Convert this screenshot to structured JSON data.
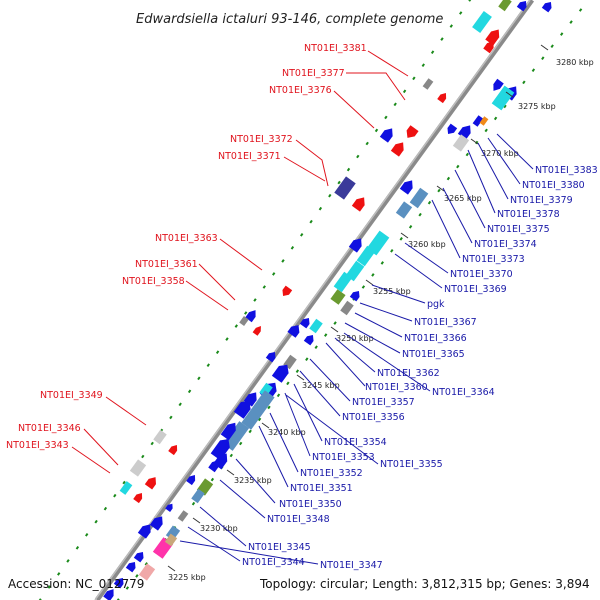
{
  "title": "Edwardsiella ictaluri 93-146, complete genome",
  "footer": {
    "accession": "Accession: NC_012779",
    "summary": "Topology: circular; Length: 3,812,315 bp; Genes: 3,894"
  },
  "ticks": [
    "3225 kbp",
    "3230 kbp",
    "3235 kbp",
    "3240 kbp",
    "3245 kbp",
    "3250 kbp",
    "3255 kbp",
    "3260 kbp",
    "3265 kbp",
    "3270 kbp",
    "3275 kbp",
    "3280 kbp"
  ],
  "labels_left": [
    "NT01EI_3381",
    "NT01EI_3377",
    "NT01EI_3376",
    "NT01EI_3372",
    "NT01EI_3371",
    "NT01EI_3363",
    "NT01EI_3361",
    "NT01EI_3358",
    "NT01EI_3349",
    "NT01EI_3346",
    "NT01EI_3343"
  ],
  "labels_right": [
    "NT01EI_3383",
    "NT01EI_3380",
    "NT01EI_3379",
    "NT01EI_3378",
    "NT01EI_3375",
    "NT01EI_3374",
    "NT01EI_3373",
    "NT01EI_3370",
    "NT01EI_3369",
    "pgk",
    "NT01EI_3367",
    "NT01EI_3366",
    "NT01EI_3365",
    "NT01EI_3362",
    "NT01EI_3360",
    "NT01EI_3364",
    "NT01EI_3357",
    "NT01EI_3356",
    "NT01EI_3354",
    "NT01EI_3353",
    "NT01EI_3355",
    "NT01EI_3352",
    "NT01EI_3351",
    "NT01EI_3350",
    "NT01EI_3348",
    "NT01EI_3345",
    "NT01EI_3344",
    "NT01EI_3347"
  ],
  "colors": {
    "cds_blue": "#1010e0",
    "cds_red": "#ee1111",
    "steelblue": "#5a90c0",
    "cyan": "#22d8e0",
    "gray": "#888888",
    "olive": "#6a9a30",
    "pink": "#ff33aa",
    "green_dot": "#1a8a1a",
    "label_red": "#e0141e",
    "label_blue": "#1a1aa8"
  }
}
